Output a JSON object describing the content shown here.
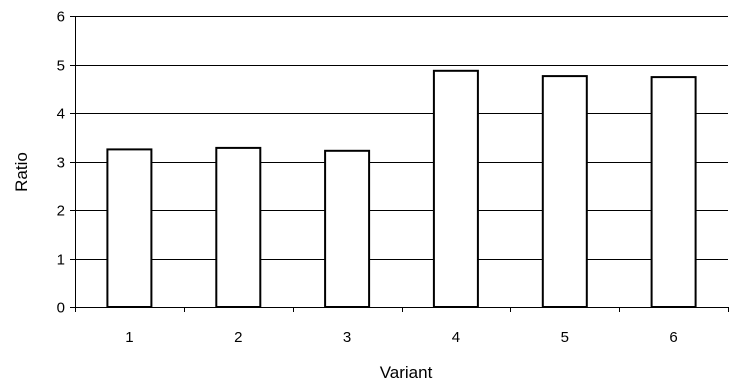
{
  "chart_data": {
    "type": "bar",
    "title": "",
    "xlabel": "Variant",
    "ylabel": "Ratio",
    "categories": [
      "1",
      "2",
      "3",
      "4",
      "5",
      "6"
    ],
    "values": [
      3.25,
      3.28,
      3.22,
      4.87,
      4.76,
      4.74
    ],
    "ylim": [
      0,
      6
    ],
    "yticks": [
      "0",
      "1",
      "2",
      "3",
      "4",
      "5",
      "6"
    ],
    "grid": "horizontal",
    "legend": "none",
    "colors": {
      "bar_fill": "#ffffff",
      "bar_stroke": "#000000",
      "grid": "#000000",
      "axis": "#000000"
    }
  }
}
